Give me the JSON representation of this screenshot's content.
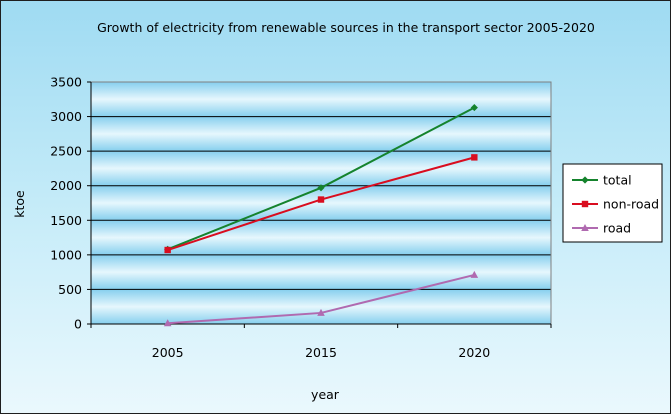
{
  "chart_data": {
    "type": "line",
    "title": "Growth of electricity from renewable sources in the transport sector 2005-2020",
    "xlabel": "year",
    "ylabel": "ktoe",
    "categories": [
      "2005",
      "2015",
      "2020"
    ],
    "ylim": [
      0,
      3500
    ],
    "yticks": [
      0,
      500,
      1000,
      1500,
      2000,
      2500,
      3000,
      3500
    ],
    "grid": true,
    "legend_position": "right",
    "series": [
      {
        "name": "total",
        "values": [
          1080,
          1970,
          3130
        ],
        "color": "#15832d",
        "marker": "diamond"
      },
      {
        "name": "non-road",
        "values": [
          1070,
          1800,
          2410
        ],
        "color": "#d90d1f",
        "marker": "square"
      },
      {
        "name": "road",
        "values": [
          10,
          160,
          710
        ],
        "color": "#b06ab0",
        "marker": "triangle"
      }
    ]
  }
}
